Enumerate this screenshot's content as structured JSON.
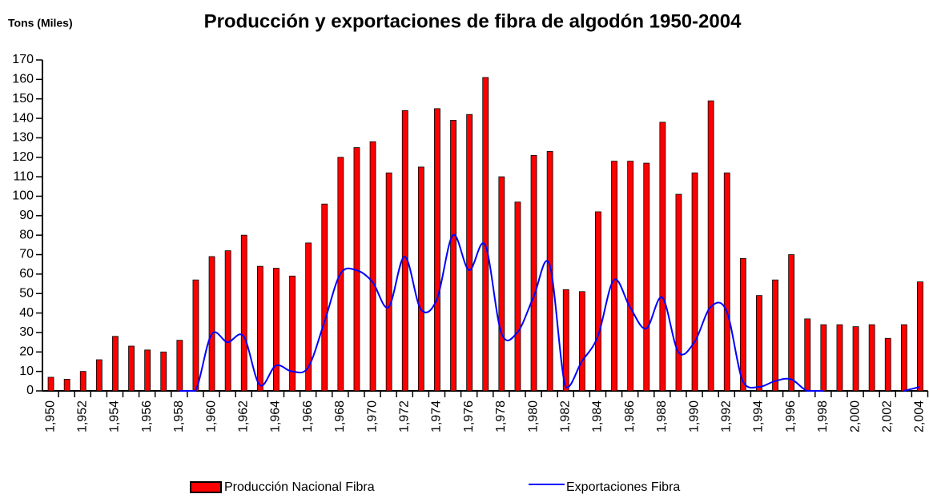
{
  "chart_data": {
    "type": "bar_line",
    "title": "Producción y exportaciones de fibra de algodón 1950-2004",
    "y_label": "Tons (Miles)",
    "categories": [
      "1,950",
      null,
      "1,952",
      null,
      "1,954",
      null,
      "1,956",
      null,
      "1,958",
      null,
      "1,960",
      null,
      "1,962",
      null,
      "1,964",
      null,
      "1,966",
      null,
      "1,968",
      null,
      "1,970",
      null,
      "1,972",
      null,
      "1,974",
      null,
      "1,976",
      null,
      "1,978",
      null,
      "1,980",
      null,
      "1,982",
      null,
      "1,984",
      null,
      "1,986",
      null,
      "1,988",
      null,
      "1,990",
      null,
      "1,992",
      null,
      "1,994",
      null,
      "1,996",
      null,
      "1,998",
      null,
      "2,000",
      null,
      "2,002",
      null,
      "2,004"
    ],
    "series": [
      {
        "name": "Producción Nacional Fibra",
        "color": "#ff0000",
        "kind": "bar",
        "values": [
          7,
          6,
          10,
          16,
          28,
          23,
          21,
          20,
          26,
          57,
          69,
          72,
          80,
          64,
          63,
          59,
          76,
          96,
          120,
          125,
          128,
          112,
          144,
          115,
          145,
          139,
          142,
          161,
          110,
          97,
          121,
          123,
          52,
          51,
          92,
          118,
          118,
          117,
          138,
          101,
          112,
          149,
          112,
          68,
          49,
          57,
          70,
          37,
          34,
          34,
          33,
          34,
          27,
          34,
          56
        ]
      },
      {
        "name": "Exportaciones Fibra",
        "color": "#0000ff",
        "kind": "line",
        "values": [
          null,
          null,
          null,
          null,
          null,
          null,
          null,
          null,
          0,
          0,
          29,
          25,
          28,
          3,
          13,
          10,
          12,
          35,
          60,
          62,
          56,
          43,
          69,
          42,
          47,
          80,
          62,
          75,
          30,
          30,
          48,
          65,
          2,
          15,
          28,
          57,
          43,
          32,
          48,
          20,
          25,
          43,
          41,
          5,
          2,
          5,
          6,
          0,
          0,
          null,
          null,
          null,
          null,
          0,
          2
        ]
      }
    ],
    "ylim": [
      0,
      170
    ],
    "yticks": [
      0,
      10,
      20,
      30,
      40,
      50,
      60,
      70,
      80,
      90,
      100,
      110,
      120,
      130,
      140,
      150,
      160,
      170
    ],
    "grid": false
  }
}
